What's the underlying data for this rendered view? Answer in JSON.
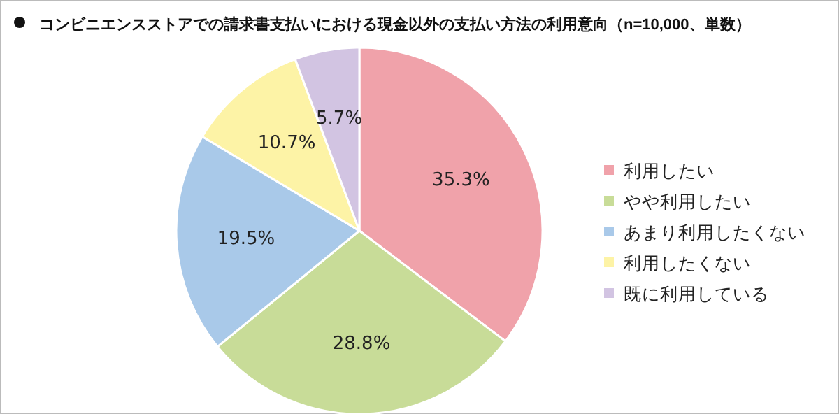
{
  "chart_data": {
    "type": "pie",
    "title": "コンビニエンスストアでの請求書支払いにおける現金以外の支払い方法の利用意向（n=10,000、単数）",
    "categories": [
      "利用したい",
      "やや利用したい",
      "あまり利用したくない",
      "利用したくない",
      "既に利用している"
    ],
    "values": [
      35.3,
      28.8,
      19.5,
      10.7,
      5.7
    ],
    "colors": [
      "#f0a2aa",
      "#c8dc98",
      "#a9c9e9",
      "#fdf3a6",
      "#d2c4e2"
    ],
    "value_labels": [
      "35.3%",
      "28.8%",
      "19.5%",
      "10.7%",
      "5.7%"
    ],
    "legend": "right"
  }
}
